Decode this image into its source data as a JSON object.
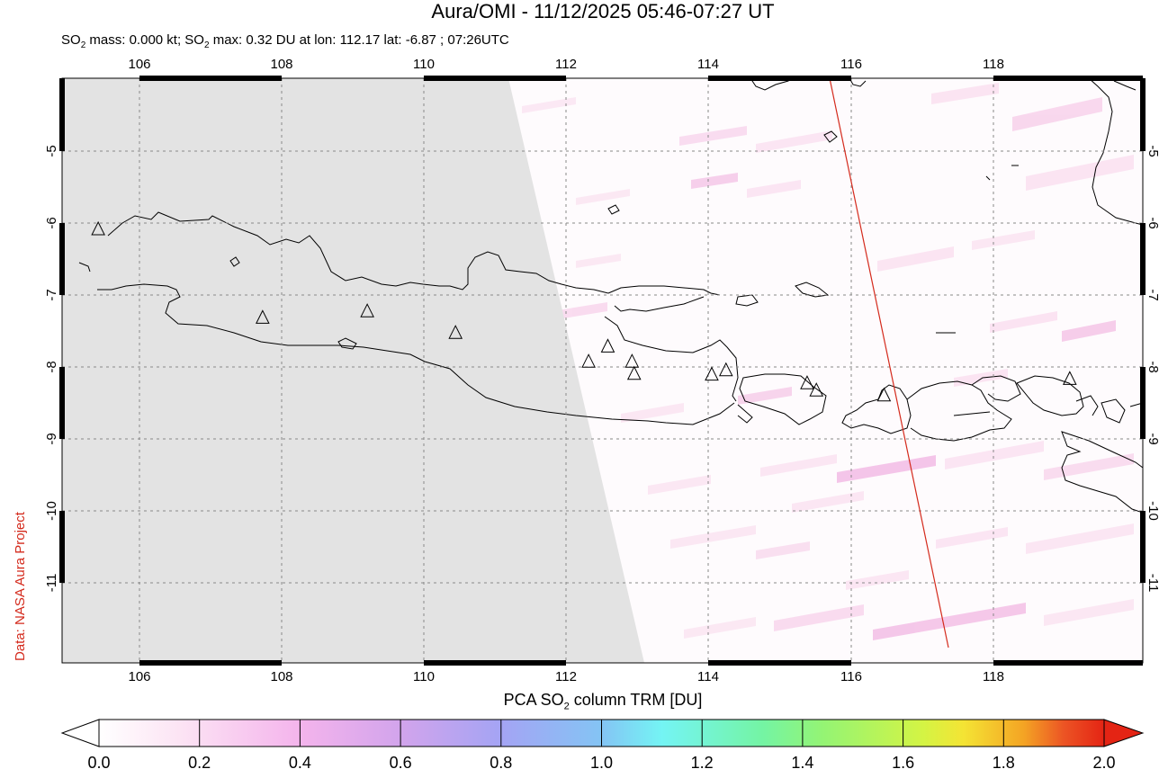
{
  "header": {
    "title": "Aura/OMI - 11/12/2025 05:46-07:27 UT",
    "subtitle_prefix": "SO",
    "subtitle_sub1": "2",
    "subtitle_mid": " mass: 0.000 kt; SO",
    "subtitle_sub2": "2",
    "subtitle_rest": " max: 0.32 DU at lon: 112.17 lat: -6.87 ; 07:26UTC"
  },
  "credit": "Data: NASA Aura Project",
  "map": {
    "lon_range": [
      104.9,
      120.0
    ],
    "lat_range": [
      -12.0,
      -4.0
    ],
    "lon_ticks": [
      "106",
      "108",
      "110",
      "112",
      "114",
      "116",
      "118"
    ],
    "lat_ticks": [
      "-5",
      "-6",
      "-7",
      "-8",
      "-9",
      "-10",
      "-11"
    ],
    "lat_ticks_right": [
      "-5",
      "-6",
      "-7",
      "-8",
      "-9",
      "-10",
      "-11"
    ],
    "no_data_color": "#e3e3e3",
    "orbit_track_color": "#d42a1c",
    "volcano_marker": "triangle-outline",
    "volcanoes": [
      {
        "lon": 105.42,
        "lat": -6.1
      },
      {
        "lon": 107.73,
        "lat": -7.33
      },
      {
        "lon": 109.2,
        "lat": -7.24
      },
      {
        "lon": 110.44,
        "lat": -7.54
      },
      {
        "lon": 112.31,
        "lat": -7.94
      },
      {
        "lon": 112.58,
        "lat": -7.73
      },
      {
        "lon": 112.92,
        "lat": -7.94
      },
      {
        "lon": 112.95,
        "lat": -8.11
      },
      {
        "lon": 114.04,
        "lat": -8.12
      },
      {
        "lon": 114.24,
        "lat": -8.06
      },
      {
        "lon": 115.38,
        "lat": -8.24
      },
      {
        "lon": 115.51,
        "lat": -8.34
      },
      {
        "lon": 116.46,
        "lat": -8.41
      },
      {
        "lon": 119.07,
        "lat": -8.18
      }
    ]
  },
  "colorbar": {
    "title_prefix": "PCA SO",
    "title_sub": "2",
    "title_rest": " column TRM [DU]",
    "ticks": [
      "0.0",
      "0.2",
      "0.4",
      "0.6",
      "0.8",
      "1.0",
      "1.2",
      "1.4",
      "1.6",
      "1.8",
      "2.0"
    ],
    "min": 0.0,
    "max": 2.0,
    "colors": [
      "#ffffff",
      "#fce4f4",
      "#f4b4ec",
      "#d2a4ec",
      "#a4a4f4",
      "#84c4f4",
      "#74f4f4",
      "#74f4a4",
      "#94f474",
      "#d4f444",
      "#f4e434",
      "#f4a424",
      "#ec5424",
      "#e42414"
    ]
  }
}
